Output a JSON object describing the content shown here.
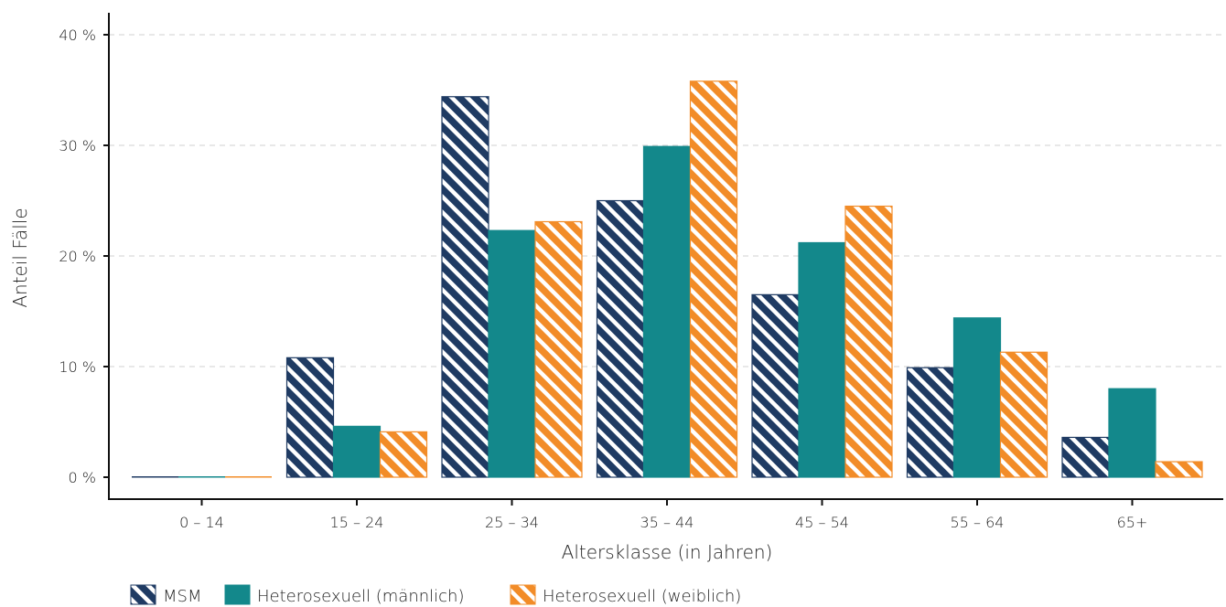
{
  "chart_data": {
    "type": "bar",
    "xlabel": "Altersklasse (in Jahren)",
    "ylabel": "Anteil Fälle",
    "ylim": [
      0,
      40
    ],
    "yticks": [
      0,
      10,
      20,
      30,
      40
    ],
    "ytick_labels": [
      "0 %",
      "10 %",
      "20 %",
      "30 %",
      "40 %"
    ],
    "grid": "horizontal dashed",
    "legend_position": "bottom-left",
    "categories": [
      "0 – 14",
      "15 – 24",
      "25 – 34",
      "35 – 44",
      "45 – 54",
      "55 – 64",
      "65+"
    ],
    "series": [
      {
        "name": "MSM",
        "color": "#1f3b63",
        "pattern": "hatched",
        "values": [
          0,
          10.8,
          34.4,
          25.0,
          16.5,
          9.9,
          3.6
        ]
      },
      {
        "name": "Heterosexuell (männlich)",
        "color": "#13888b",
        "pattern": "solid",
        "values": [
          0,
          4.6,
          22.3,
          29.9,
          21.2,
          14.4,
          8.0
        ]
      },
      {
        "name": "Heterosexuell (weiblich)",
        "color": "#f28c28",
        "pattern": "hatched",
        "values": [
          0,
          4.1,
          23.1,
          35.8,
          24.5,
          11.3,
          1.4
        ]
      }
    ]
  }
}
